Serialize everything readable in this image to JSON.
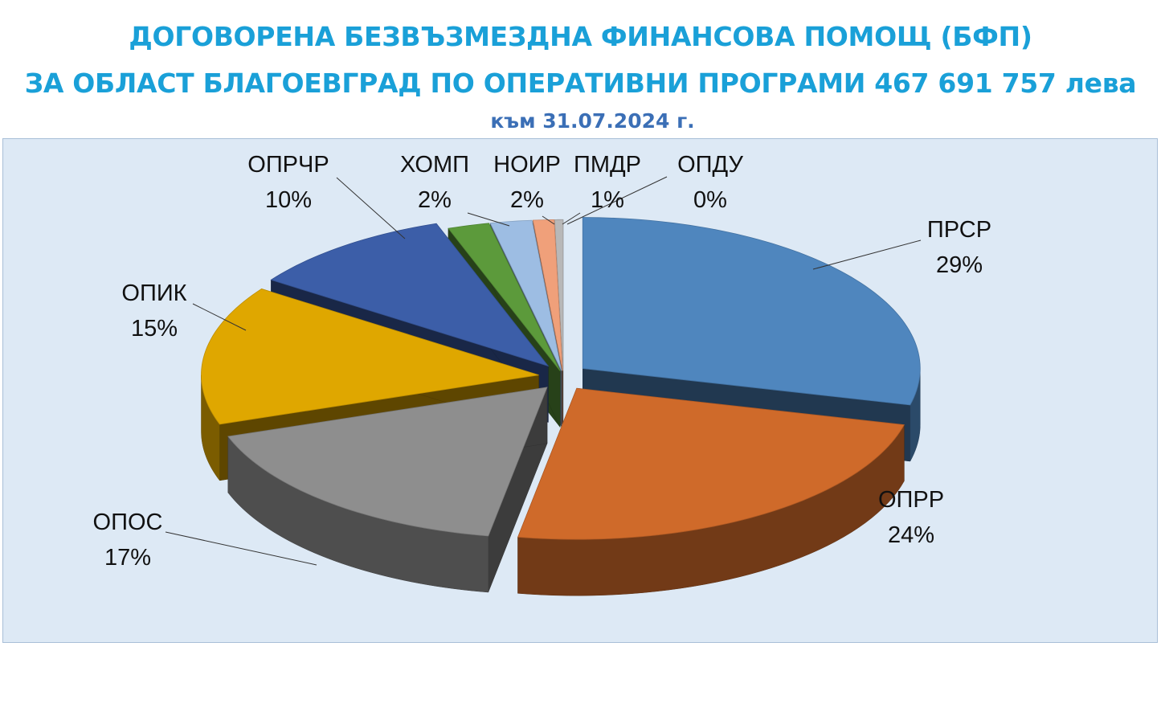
{
  "header": {
    "title_line1": "ДОГОВОРЕНА БЕЗВЪЗМЕЗДНА ФИНАНСОВА ПОМОЩ  (БФП)",
    "title_line2": "ЗА ОБЛАСТ БЛАГОЕВГРАД  ПО ОПЕРАТИВНИ ПРОГРАМИ 467 691 757 лева",
    "subtitle": "към 31.07.2024 г."
  },
  "chart_data": {
    "type": "pie",
    "style": "3d-exploded",
    "title": "ДОГОВОРЕНА БЕЗВЪЗМЕЗДНА ФИНАНСОВА ПОМОЩ  (БФП) ЗА ОБЛАСТ БЛАГОЕВГРАД  ПО ОПЕРАТИВНИ ПРОГРАМИ 467 691 757 лева",
    "subtitle": "към 31.07.2024 г.",
    "unit": "%",
    "legend": "none",
    "slices": [
      {
        "label": "ПРСР",
        "value": 29,
        "display": "29%",
        "color": "#4f86be"
      },
      {
        "label": "ОПРР",
        "value": 24,
        "display": "24%",
        "color": "#cf6a2a"
      },
      {
        "label": "ОПОС",
        "value": 17,
        "display": "17%",
        "color": "#8e8e8e"
      },
      {
        "label": "ОПИК",
        "value": 15,
        "display": "15%",
        "color": "#dfa700"
      },
      {
        "label": "ОПРЧР",
        "value": 10,
        "display": "10%",
        "color": "#3c5ea8"
      },
      {
        "label": "ХОМП",
        "value": 2,
        "display": "2%",
        "color": "#5c9a3b"
      },
      {
        "label": "НОИР",
        "value": 2,
        "display": "2%",
        "color": "#9dbde3"
      },
      {
        "label": "ПМДР",
        "value": 1,
        "display": "1%",
        "color": "#f0a07a"
      },
      {
        "label": "ОПДУ",
        "value": 0,
        "display": "0%",
        "color": "#b8b8b8"
      }
    ]
  }
}
